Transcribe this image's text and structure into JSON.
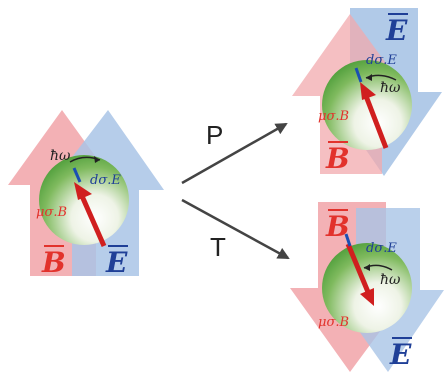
{
  "colors": {
    "red_arrow_fill": "#f2a9ad",
    "blue_arrow_fill": "#a9c4e6",
    "overlap_fill": "#c9b2c6",
    "red_label": "#e2322c",
    "blue_label": "#1f3f97",
    "sphere_green": "#4f9e3b",
    "spin_arrow": "#d01f1f",
    "spin_tail": "#1a4fb3",
    "text_dark": "#222222",
    "transform_arrow": "#444444"
  },
  "symbols": {
    "B": "B",
    "E": "E",
    "hbar_omega": "ħω",
    "d_sigma_E": "dσ.E",
    "mu_sigma_B": "μσ.B"
  },
  "transformations": {
    "parity": "P",
    "time_reversal": "T"
  }
}
